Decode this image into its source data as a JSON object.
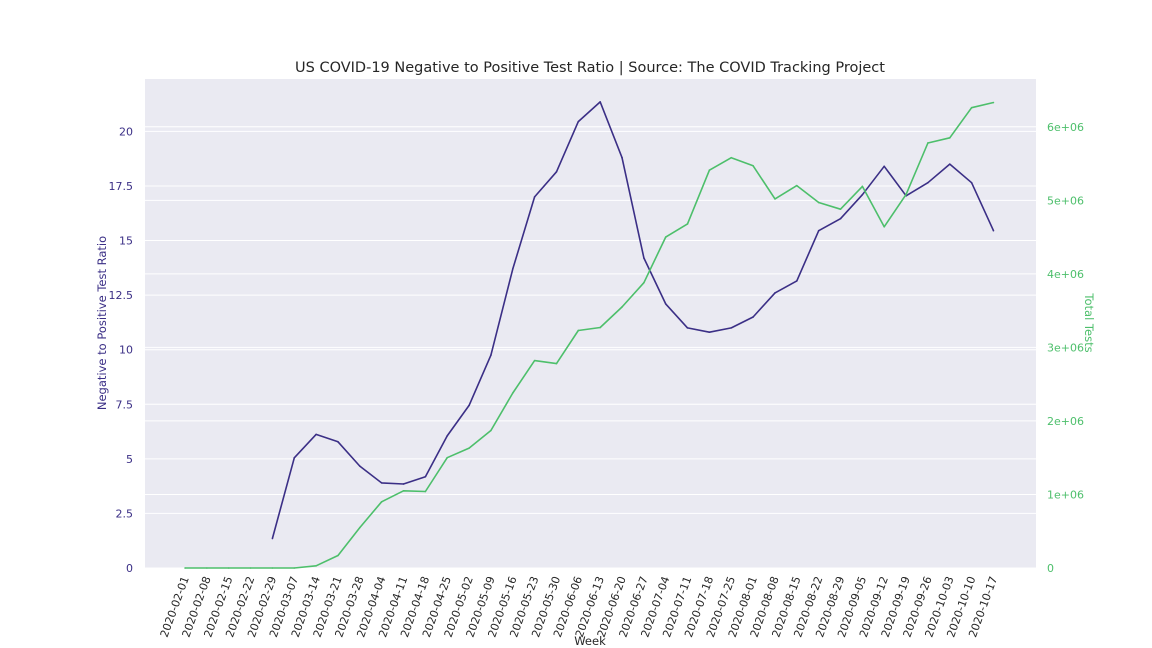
{
  "chart_data": {
    "type": "line",
    "title": "US COVID-19 Negative to Positive Test Ratio | Source: The COVID Tracking Project",
    "xlabel": "Week",
    "ylabel_left": "Negative to Positive Test Ratio",
    "ylabel_right": "Total Tests",
    "categories": [
      "2020-02-01",
      "2020-02-08",
      "2020-02-15",
      "2020-02-22",
      "2020-02-29",
      "2020-03-07",
      "2020-03-14",
      "2020-03-21",
      "2020-03-28",
      "2020-04-04",
      "2020-04-11",
      "2020-04-18",
      "2020-04-25",
      "2020-05-02",
      "2020-05-09",
      "2020-05-16",
      "2020-05-23",
      "2020-05-30",
      "2020-06-06",
      "2020-06-13",
      "2020-06-20",
      "2020-06-27",
      "2020-07-04",
      "2020-07-11",
      "2020-07-18",
      "2020-07-25",
      "2020-08-01",
      "2020-08-08",
      "2020-08-15",
      "2020-08-22",
      "2020-08-29",
      "2020-09-05",
      "2020-09-12",
      "2020-09-19",
      "2020-09-26",
      "2020-10-03",
      "2020-10-10",
      "2020-10-17"
    ],
    "series": [
      {
        "axis": "left",
        "color": "#3b2f86",
        "values": [
          null,
          null,
          null,
          null,
          1.35,
          5.05,
          6.12,
          5.78,
          4.67,
          3.9,
          3.85,
          4.18,
          6.05,
          7.45,
          9.75,
          13.7,
          17.0,
          18.15,
          20.45,
          21.35,
          18.8,
          14.2,
          12.1,
          11.0,
          10.8,
          11.0,
          11.5,
          12.6,
          13.15,
          15.45,
          16.0,
          17.1,
          18.4,
          17.05,
          17.65,
          18.5,
          17.65,
          15.45
        ]
      },
      {
        "axis": "right",
        "color": "#4dbf6b",
        "values": [
          0,
          0,
          0,
          0,
          0,
          0,
          30000,
          170000,
          550000,
          900000,
          1050000,
          1040000,
          1500000,
          1630000,
          1870000,
          2380000,
          2820000,
          2780000,
          3230000,
          3270000,
          3550000,
          3880000,
          4500000,
          4680000,
          5410000,
          5580000,
          5470000,
          5020000,
          5200000,
          4970000,
          4880000,
          5190000,
          4640000,
          5080000,
          5780000,
          5850000,
          6260000,
          6330000
        ]
      }
    ],
    "ylim_left": [
      0,
      22.4
    ],
    "ylim_right": [
      0,
      6650000
    ],
    "yticks_left": [
      0,
      2.5,
      5,
      7.5,
      10,
      12.5,
      15,
      17.5,
      20
    ],
    "yticks_left_labels": [
      "0",
      "2.5",
      "5",
      "7.5",
      "10",
      "12.5",
      "15",
      "17.5",
      "20"
    ],
    "yticks_right": [
      0,
      1000000,
      2000000,
      3000000,
      4000000,
      5000000,
      6000000
    ],
    "yticks_right_labels": [
      "0",
      "1e+06",
      "2e+06",
      "3e+06",
      "4e+06",
      "5e+06",
      "6e+06"
    ],
    "grid": true,
    "plot_background": "#eaeaf2"
  }
}
